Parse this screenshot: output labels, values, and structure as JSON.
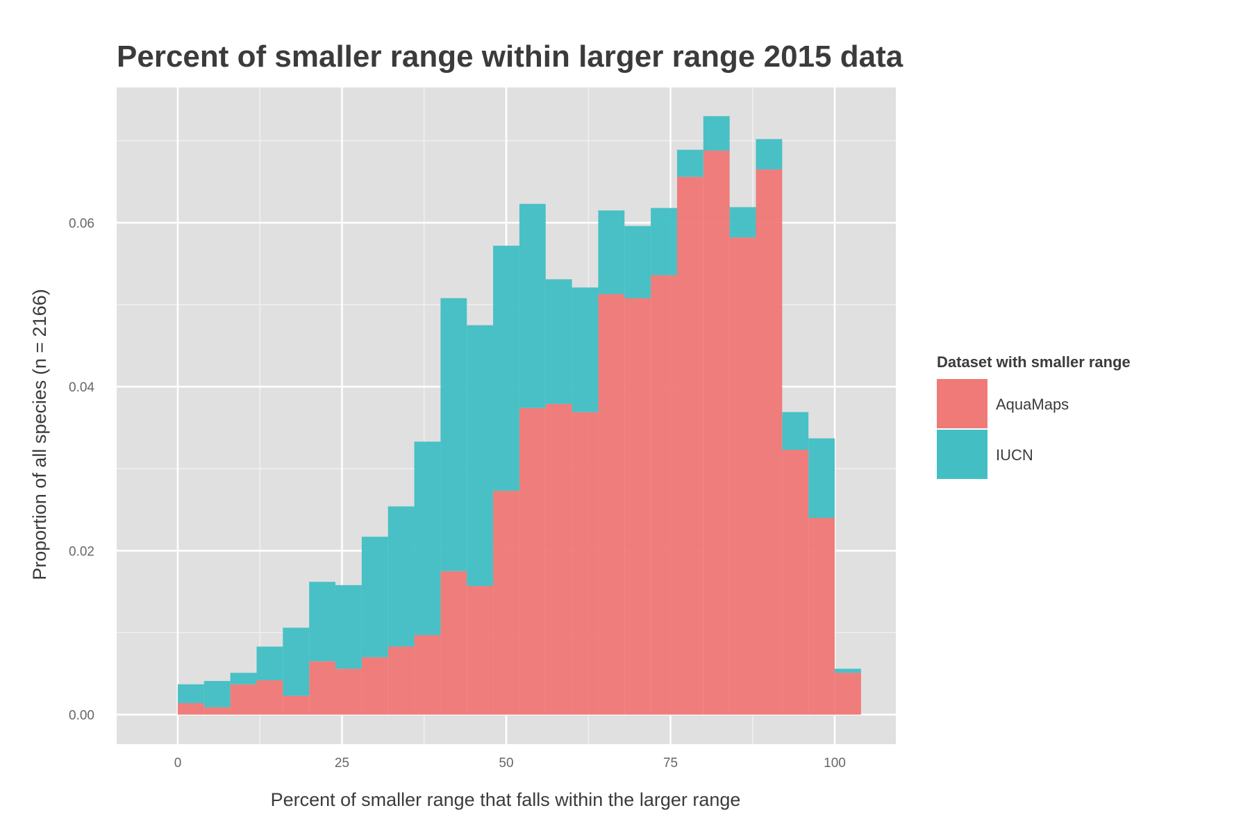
{
  "chart_data": {
    "type": "bar",
    "stacked": true,
    "title": "Percent of smaller range within larger range 2015 data",
    "xlabel": "Percent of smaller range that falls within the larger range",
    "ylabel": "Proportion of all species (n = 2166)",
    "xlim": [
      -9.3,
      109.3
    ],
    "ylim": [
      -0.0036,
      0.0765
    ],
    "x_ticks": [
      0,
      25,
      50,
      75,
      100
    ],
    "x_tick_labels": [
      "0",
      "25",
      "50",
      "75",
      "100"
    ],
    "y_ticks": [
      0,
      0.02,
      0.04,
      0.06
    ],
    "y_tick_labels": [
      "0.00",
      "0.02",
      "0.04",
      "0.06"
    ],
    "bin_width": 4,
    "bin_starts": [
      0,
      4,
      8,
      12,
      16,
      20,
      24,
      28,
      32,
      36,
      40,
      44,
      48,
      52,
      56,
      60,
      64,
      68,
      72,
      76,
      80,
      84,
      88,
      92,
      96,
      100
    ],
    "series": [
      {
        "name": "AquaMaps",
        "color": "#f07a78",
        "values": [
          0.0014,
          0.0009,
          0.0037,
          0.0042,
          0.0023,
          0.0065,
          0.0056,
          0.007,
          0.0083,
          0.0097,
          0.0175,
          0.0157,
          0.0273,
          0.0374,
          0.0379,
          0.0369,
          0.0513,
          0.0508,
          0.0536,
          0.0656,
          0.0688,
          0.0582,
          0.0665,
          0.0323,
          0.024,
          0.0051
        ]
      },
      {
        "name": "IUCN",
        "color": "#43bfc4",
        "values": [
          0.0023,
          0.0032,
          0.0014,
          0.0041,
          0.0083,
          0.0097,
          0.0102,
          0.0147,
          0.0171,
          0.0236,
          0.0333,
          0.0318,
          0.0299,
          0.0249,
          0.0152,
          0.0152,
          0.0102,
          0.0088,
          0.0082,
          0.0033,
          0.0042,
          0.0037,
          0.0037,
          0.0046,
          0.0097,
          0.0005
        ]
      }
    ],
    "legend": {
      "title": "Dataset with smaller range",
      "position": "right",
      "entries": [
        "AquaMaps",
        "IUCN"
      ]
    },
    "grid": true
  }
}
